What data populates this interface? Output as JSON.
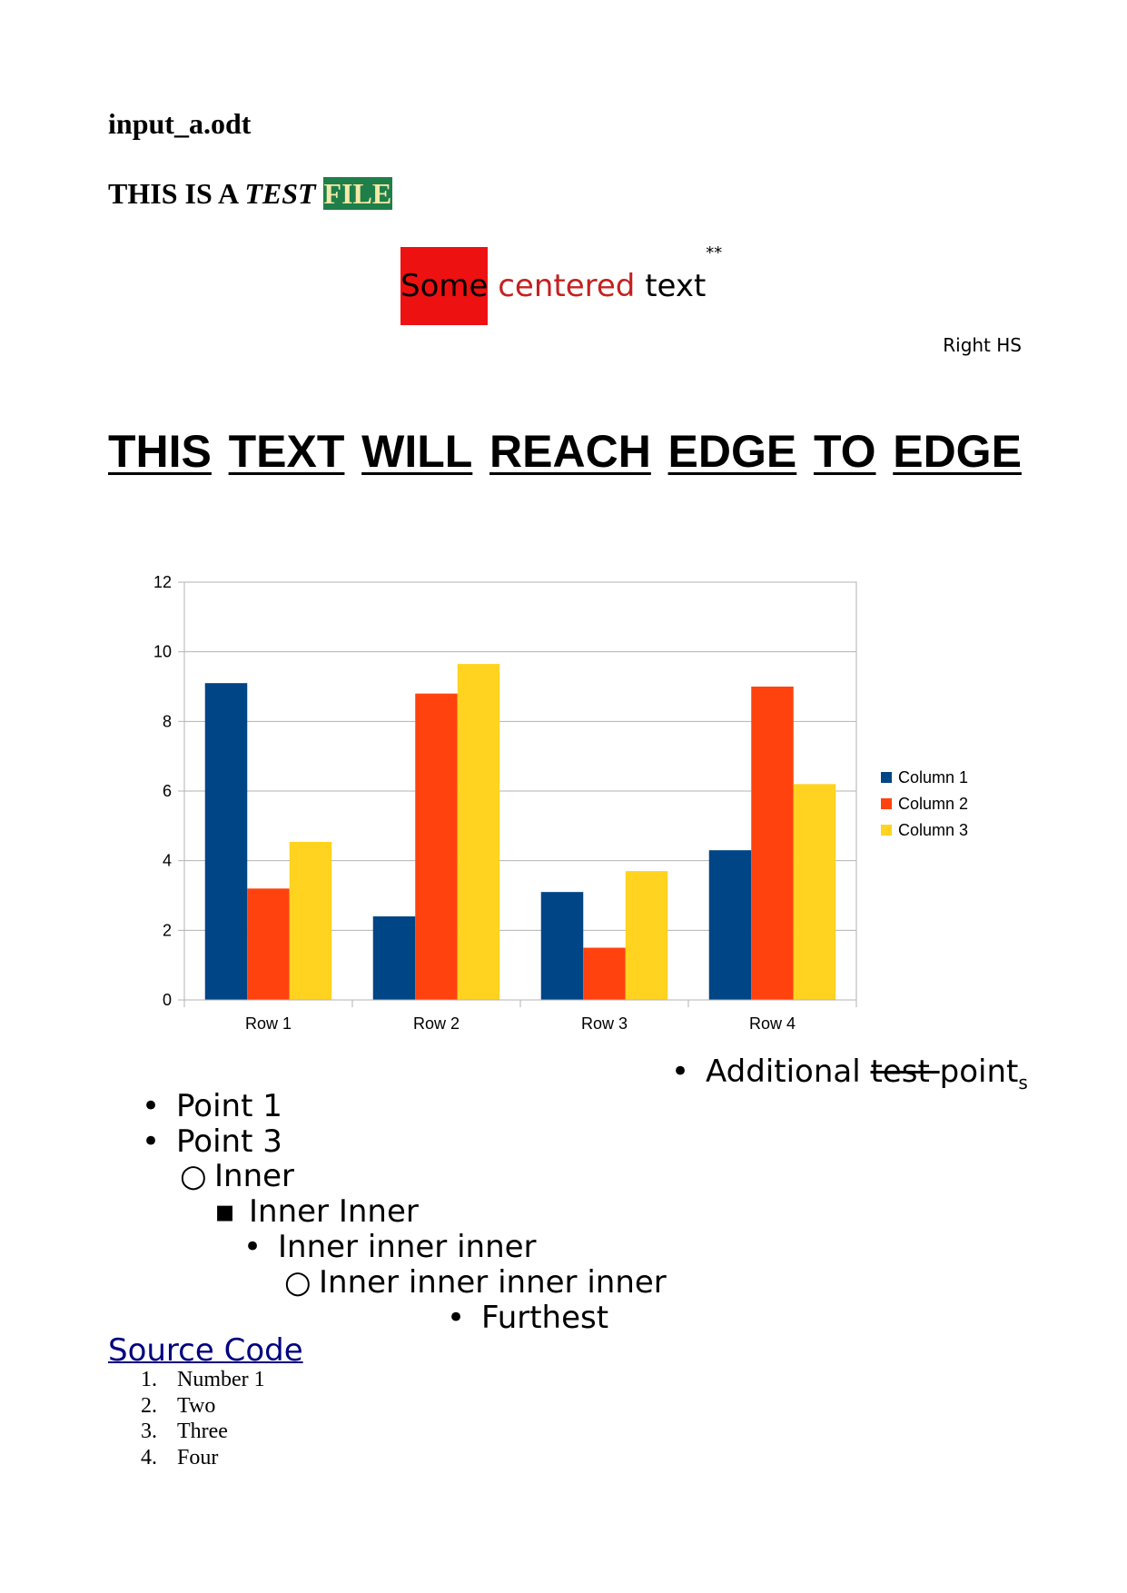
{
  "document": {
    "title": "input_a.odt",
    "test_line": {
      "prefix": "THIS IS A ",
      "italic": "TEST",
      "highlight": "FILE"
    },
    "centered_text": {
      "word1": "Some",
      "word2": "centered",
      "word3": "text",
      "superscript": "**"
    },
    "right_text": "Right HS",
    "edge_text": [
      "THIS",
      "TEXT",
      "WILL",
      "REACH",
      "EDGE",
      "TO",
      "EDGE"
    ],
    "additional_bullet": {
      "mark": "•",
      "text_start": "Additional ",
      "struck": "test ",
      "text_end": "point",
      "subscript": "s"
    },
    "bullets": [
      {
        "mark": "•",
        "text": "Point 1"
      },
      {
        "mark": "•",
        "text": "Point 3"
      },
      {
        "mark": "○",
        "text": "Inner"
      },
      {
        "mark": "▪",
        "text": "Inner Inner"
      },
      {
        "mark": "•",
        "text": "Inner inner inner"
      },
      {
        "mark": "○",
        "text": "Inner inner inner inner"
      },
      {
        "mark": "•",
        "text": "Furthest"
      }
    ],
    "link_text": "Source Code",
    "numbered_list": [
      {
        "num": "1.",
        "text": "Number 1"
      },
      {
        "num": "2.",
        "text": "Two"
      },
      {
        "num": "3.",
        "text": "Three"
      },
      {
        "num": "4.",
        "text": "Four"
      }
    ]
  },
  "colors": {
    "series1": "#004586",
    "series2": "#ff420e",
    "series3": "#ffd320",
    "highlight_bg": "#1e7f4a",
    "red_box": "#ee1111",
    "link": "#000080"
  },
  "chart_data": {
    "type": "bar",
    "categories": [
      "Row 1",
      "Row 2",
      "Row 3",
      "Row 4"
    ],
    "series": [
      {
        "name": "Column 1",
        "values": [
          9.1,
          2.4,
          3.1,
          4.3
        ]
      },
      {
        "name": "Column 2",
        "values": [
          3.2,
          8.8,
          1.5,
          9.0
        ]
      },
      {
        "name": "Column 3",
        "values": [
          4.54,
          9.65,
          3.7,
          6.2
        ]
      }
    ],
    "ylim": [
      0,
      12
    ],
    "yticks": [
      "0",
      "2",
      "4",
      "6",
      "8",
      "10",
      "12"
    ],
    "grid": true,
    "legend": "right"
  }
}
